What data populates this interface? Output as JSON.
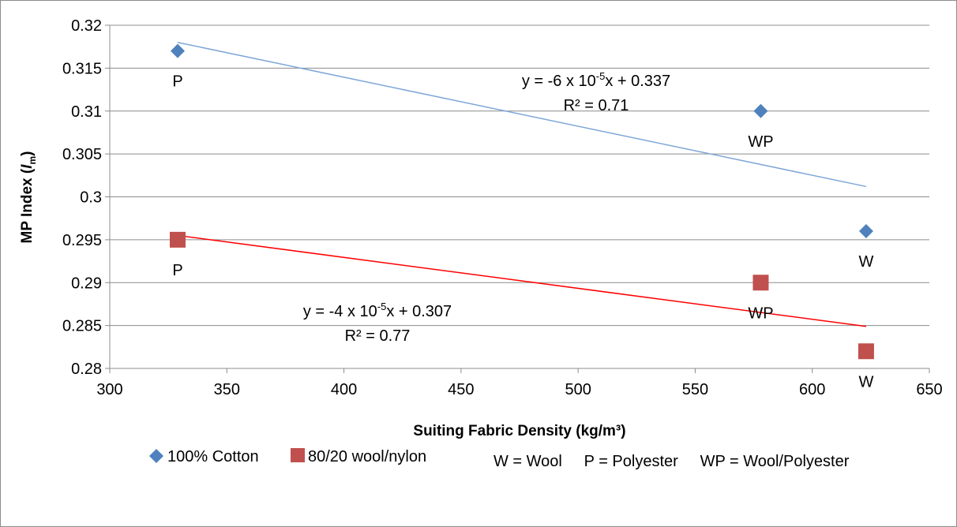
{
  "chart_data": {
    "type": "scatter",
    "xlabel": "Suiting Fabric Density (kg/m³)",
    "ylabel_main": "MP Index (",
    "ylabel_italic": "I",
    "ylabel_sub": "m",
    "ylabel_close": ")",
    "xlim": [
      300,
      650
    ],
    "ylim": [
      0.28,
      0.32
    ],
    "x_ticks": [
      300,
      350,
      400,
      450,
      500,
      550,
      600,
      650
    ],
    "x_tick_labels": [
      "300",
      "350",
      "400",
      "450",
      "500",
      "550",
      "600",
      "650"
    ],
    "y_ticks": [
      0.28,
      0.285,
      0.29,
      0.295,
      0.3,
      0.305,
      0.31,
      0.315,
      0.32
    ],
    "y_tick_labels": [
      "0.28",
      "0.285",
      "0.29",
      "0.295",
      "0.3",
      "0.305",
      "0.31",
      "0.315",
      "0.32"
    ],
    "grid": "horizontal",
    "series": [
      {
        "name": "100% Cotton",
        "marker": "diamond",
        "color": "#4f81bd",
        "line_color": "#7ea6d8",
        "points": [
          {
            "x": 329,
            "y": 0.317,
            "label": "P"
          },
          {
            "x": 578,
            "y": 0.31,
            "label": "WP"
          },
          {
            "x": 623,
            "y": 0.296,
            "label": "W"
          }
        ],
        "trendline": {
          "x": [
            329,
            623
          ],
          "y": [
            0.318,
            0.3012
          ]
        },
        "equation": {
          "text_a": "y = -6 x 10",
          "exp": "-5",
          "text_b": "x + 0.337",
          "r2": "R² = 0.71"
        }
      },
      {
        "name": "80/20 wool/nylon",
        "marker": "square",
        "color": "#c0504d",
        "line_color": "#ff0000",
        "points": [
          {
            "x": 329,
            "y": 0.295,
            "label": "P"
          },
          {
            "x": 578,
            "y": 0.29,
            "label": "WP"
          },
          {
            "x": 623,
            "y": 0.282,
            "label": "W"
          }
        ],
        "trendline": {
          "x": [
            329,
            623
          ],
          "y": [
            0.2955,
            0.2849
          ]
        },
        "equation": {
          "text_a": "y = -4 x 10",
          "exp": "-5",
          "text_b": "x + 0.307",
          "r2": "R² = 0.77"
        }
      }
    ],
    "legend_note": "W = Wool     P = Polyester     WP = Wool/Polyester"
  }
}
